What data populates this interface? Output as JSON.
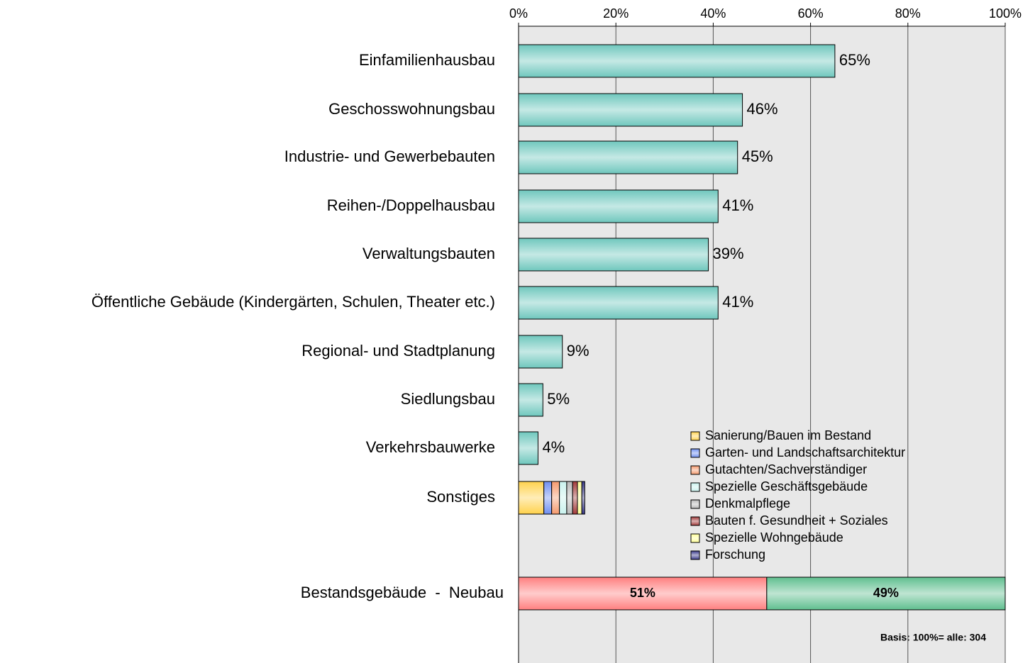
{
  "chart_data": {
    "type": "bar",
    "orientation": "horizontal",
    "categories": [
      "Einfamilienhausbau",
      "Geschosswohnungsbau",
      "Industrie- und Gewerbebauten",
      "Reihen-/Doppelhausbau",
      "Verwaltungsbauten",
      "Öffentliche Gebäude (Kindergärten, Schulen, Theater etc.)",
      "Regional- und Stadtplanung",
      "Siedlungsbau",
      "Verkehrsbauwerke"
    ],
    "values": [
      65,
      46,
      45,
      41,
      39,
      41,
      9,
      5,
      4
    ],
    "value_labels": [
      "65%",
      "46%",
      "45%",
      "41%",
      "39%",
      "41%",
      "9%",
      "5%",
      "4%"
    ],
    "color": "#6fc7bd",
    "xlim": [
      0,
      100
    ],
    "xticks": [
      {
        "value": 0,
        "label": "0%"
      },
      {
        "value": 20,
        "label": "20%"
      },
      {
        "value": 40,
        "label": "40%"
      },
      {
        "value": 60,
        "label": "60%"
      },
      {
        "value": 80,
        "label": "80%"
      },
      {
        "value": 100,
        "label": "100%"
      }
    ],
    "grid": true,
    "legend": "lower right",
    "other": {
      "category": "Sonstiges",
      "series": [
        {
          "name": "Sanierung/Bauen im Bestand",
          "color": "#ffd24d",
          "values": [
            5.2
          ]
        },
        {
          "name": "Garten- und Landschaftsarchitektur",
          "color": "#6f8ff0",
          "values": [
            1.6
          ]
        },
        {
          "name": "Gutachten/Sachverständiger",
          "color": "#f59a6e",
          "values": [
            1.6
          ]
        },
        {
          "name": "Spezielle Geschäftsgebäude",
          "color": "#c9f2ee",
          "values": [
            1.5
          ]
        },
        {
          "name": "Denkmalpflege",
          "color": "#b9b9b9",
          "values": [
            1.2
          ]
        },
        {
          "name": "Bauten f. Gesundheit + Soziales",
          "color": "#a33a3a",
          "values": [
            1.0
          ]
        },
        {
          "name": "Spezielle Wohngebäude",
          "color": "#ffff99",
          "values": [
            0.9
          ]
        },
        {
          "name": "Forschung",
          "color": "#3a3a8c",
          "values": [
            0.6
          ]
        }
      ]
    },
    "split": {
      "category": "Bestandsgebäude  -  Neubau",
      "values": [
        51,
        49
      ],
      "value_labels": [
        "51%",
        "49%"
      ],
      "colors": [
        "#ff7f7f",
        "#5fbf8f"
      ]
    },
    "annotation": "Basis: 100%= alle: 304"
  }
}
